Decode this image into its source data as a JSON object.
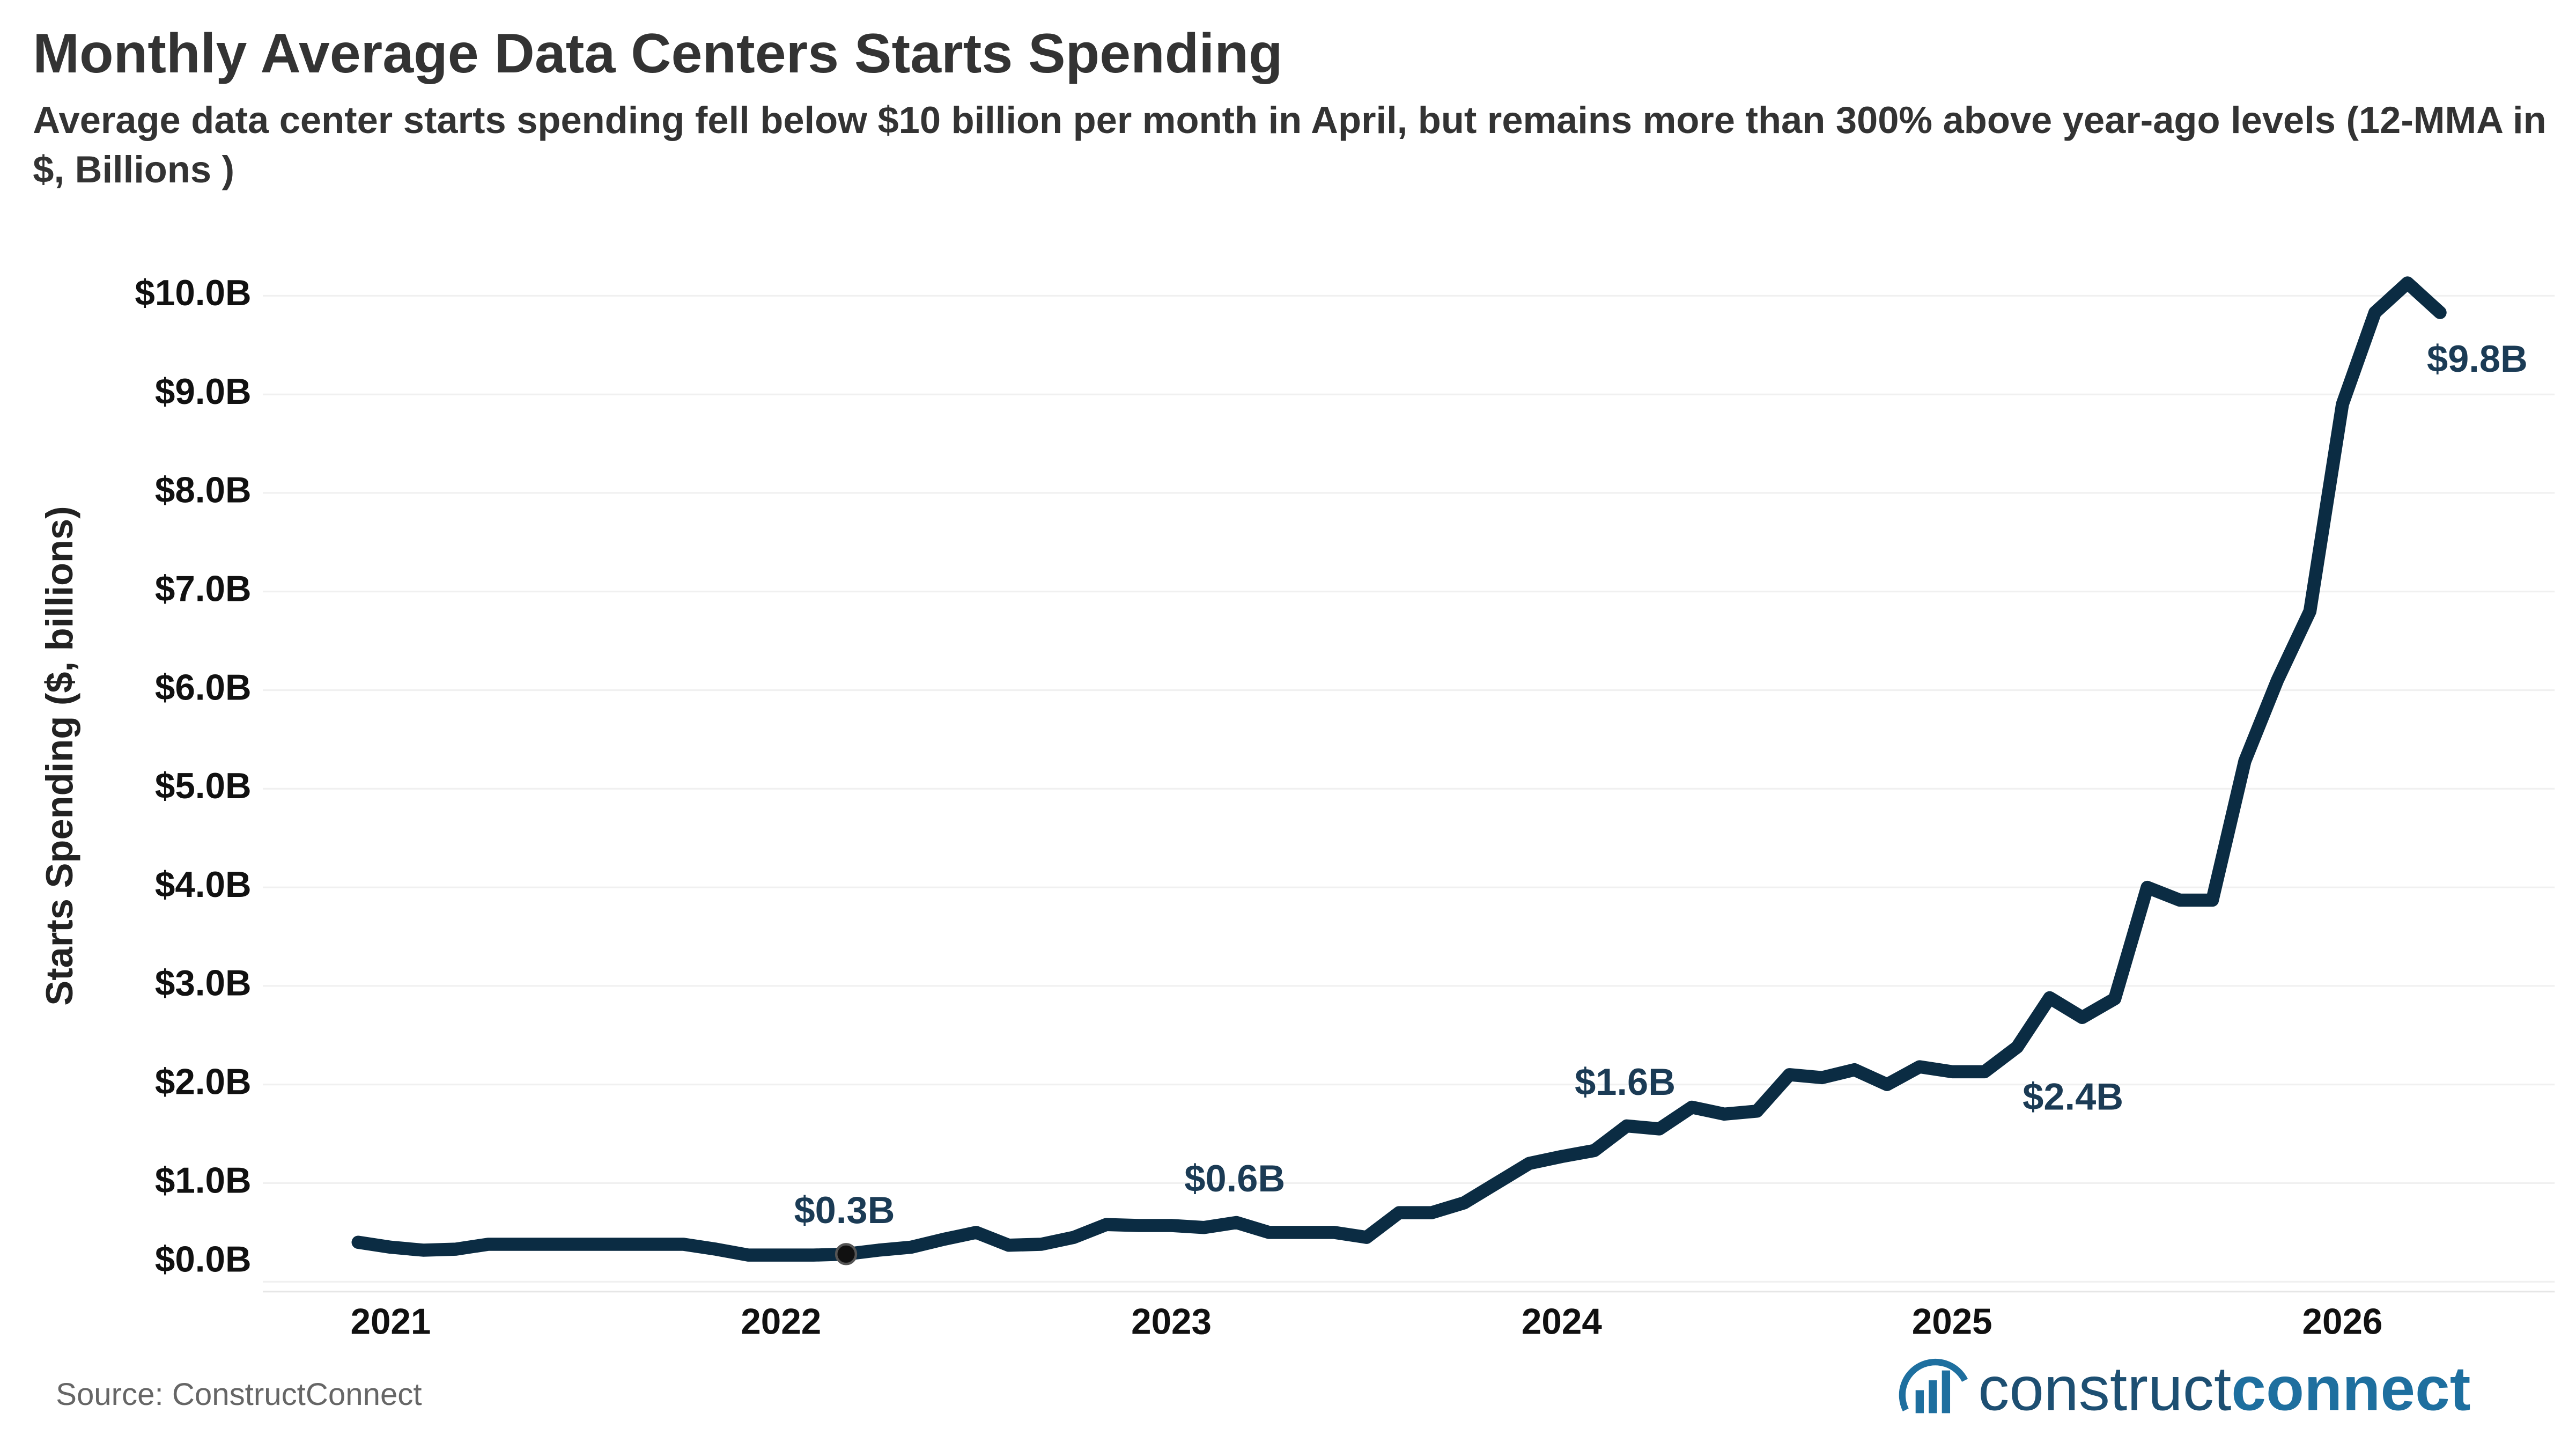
{
  "chart_data": {
    "type": "line",
    "title": "Monthly Average Data Centers Starts Spending",
    "subtitle": "Average data center starts spending fell below $10 billion per month in April, but remains more than 300% above year-ago levels (12-MMA in $, Billions )",
    "y_label": "Starts Spending ($, billions)",
    "source": "Source: ConstructConnect",
    "logo": [
      "construct",
      "connect"
    ],
    "categories": [
      null,
      "2021",
      null,
      null,
      null,
      null,
      null,
      null,
      null,
      null,
      null,
      null,
      null,
      "2022",
      null,
      null,
      null,
      null,
      null,
      null,
      null,
      null,
      null,
      null,
      null,
      "2023",
      null,
      null,
      null,
      null,
      null,
      null,
      null,
      null,
      null,
      null,
      null,
      "2024",
      null,
      null,
      null,
      null,
      null,
      null,
      null,
      null,
      null,
      null,
      null,
      "2025",
      null,
      null,
      null,
      null,
      null,
      null,
      null,
      null,
      null,
      null,
      null,
      "2026",
      null,
      null,
      null
    ],
    "series": [
      {
        "name": "Starts Spending",
        "color": "#0b2c43",
        "values": [
          0.4,
          0.35,
          0.32,
          0.33,
          0.38,
          0.38,
          0.38,
          0.38,
          0.38,
          0.38,
          0.38,
          0.33,
          0.27,
          0.27,
          0.27,
          0.28,
          0.32,
          0.35,
          0.43,
          0.5,
          0.37,
          0.38,
          0.45,
          0.58,
          0.57,
          0.57,
          0.55,
          0.6,
          0.5,
          0.5,
          0.5,
          0.45,
          0.7,
          0.7,
          0.8,
          1.0,
          1.2,
          1.27,
          1.33,
          1.58,
          1.55,
          1.77,
          1.7,
          1.73,
          2.1,
          2.07,
          2.15,
          2.0,
          2.18,
          2.13,
          2.13,
          2.38,
          2.88,
          2.68,
          2.87,
          4.0,
          3.87,
          3.87,
          5.28,
          6.1,
          6.8,
          8.9,
          9.83,
          10.13,
          9.83
        ],
        "value_labels": [
          null,
          null,
          null,
          null,
          null,
          null,
          null,
          null,
          null,
          null,
          null,
          null,
          null,
          null,
          null,
          "$0.3B",
          null,
          null,
          null,
          null,
          null,
          null,
          null,
          null,
          null,
          null,
          null,
          "$0.6B",
          null,
          null,
          null,
          null,
          null,
          null,
          null,
          null,
          null,
          null,
          null,
          "$1.6B",
          null,
          null,
          null,
          null,
          null,
          null,
          null,
          null,
          null,
          null,
          null,
          "$2.4B",
          null,
          null,
          null,
          null,
          null,
          null,
          null,
          null,
          null,
          null,
          null,
          null,
          "$9.8B"
        ]
      }
    ],
    "ylim": [
      0,
      10.6
    ],
    "yticks": [
      {
        "value": 0,
        "label": "$0.0B"
      },
      {
        "value": 1,
        "label": "$1.0B"
      },
      {
        "value": 2,
        "label": "$2.0B"
      },
      {
        "value": 3,
        "label": "$3.0B"
      },
      {
        "value": 4,
        "label": "$4.0B"
      },
      {
        "value": 5,
        "label": "$5.0B"
      },
      {
        "value": 6,
        "label": "$6.0B"
      },
      {
        "value": 7,
        "label": "$7.0B"
      },
      {
        "value": 8,
        "label": "$8.0B"
      },
      {
        "value": 9,
        "label": "$9.0B"
      },
      {
        "value": 10,
        "label": "$10.0B"
      }
    ],
    "grid": true,
    "label_color": "#1b3b55"
  }
}
